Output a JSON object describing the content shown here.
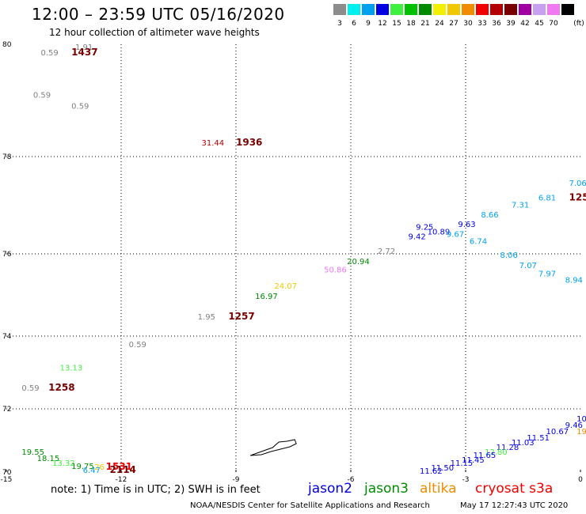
{
  "header": {
    "title": "12:00 – 23:59 UTC 05/16/2020",
    "subtitle": "12 hour collection of altimeter wave heights"
  },
  "legend": {
    "unit": "(ft)",
    "bins": [
      {
        "label": "3",
        "color": "#8c8c8c"
      },
      {
        "label": "6",
        "color": "#00f0f0"
      },
      {
        "label": "9",
        "color": "#00a0f0"
      },
      {
        "label": "12",
        "color": "#0000e0"
      },
      {
        "label": "15",
        "color": "#40f040"
      },
      {
        "label": "18",
        "color": "#00c000"
      },
      {
        "label": "21",
        "color": "#008a00"
      },
      {
        "label": "24",
        "color": "#f0f000"
      },
      {
        "label": "27",
        "color": "#f0c800"
      },
      {
        "label": "30",
        "color": "#f08c00"
      },
      {
        "label": "33",
        "color": "#f00000"
      },
      {
        "label": "36",
        "color": "#b40000"
      },
      {
        "label": "39",
        "color": "#780000"
      },
      {
        "label": "42",
        "color": "#a000a0"
      },
      {
        "label": "45",
        "color": "#c8a0f0"
      },
      {
        "label": "70",
        "color": "#f078f0"
      },
      {
        "label": "",
        "color": "#000000"
      }
    ]
  },
  "map": {
    "lon_range": [
      -15,
      0
    ],
    "lat_range": [
      70,
      80
    ],
    "x_ticks": [
      {
        "lon": -15,
        "label": "-15"
      },
      {
        "lon": -12,
        "label": "-12"
      },
      {
        "lon": -9,
        "label": "-9"
      },
      {
        "lon": -6,
        "label": "-6"
      },
      {
        "lon": -3,
        "label": "-3"
      },
      {
        "lon": 0,
        "label": "0"
      }
    ],
    "y_ticks": [
      {
        "lat": 80,
        "label": "80"
      },
      {
        "lat": 78,
        "label": "78"
      },
      {
        "lat": 76,
        "label": "76"
      },
      {
        "lat": 74,
        "label": "74"
      },
      {
        "lat": 72,
        "label": "72"
      },
      {
        "lat": 70,
        "label": "70"
      }
    ],
    "gridline_lons": [
      -12,
      -9,
      -6,
      -3
    ],
    "gridline_lats": [
      78,
      76,
      74,
      72
    ],
    "island_name": "jan-mayen-outline",
    "labels": [
      {
        "text": "0.59",
        "lon": -14.1,
        "lat": 79.8,
        "color": "#808080",
        "kind": "swh"
      },
      {
        "text": "1.91",
        "lon": -13.2,
        "lat": 79.9,
        "color": "#808080",
        "kind": "swh"
      },
      {
        "text": "1437",
        "lon": -13.3,
        "lat": 79.8,
        "color": "#780000",
        "kind": "time"
      },
      {
        "text": "0.59",
        "lon": -14.3,
        "lat": 79.05,
        "color": "#808080",
        "kind": "swh"
      },
      {
        "text": "0.59",
        "lon": -13.3,
        "lat": 78.85,
        "color": "#808080",
        "kind": "swh"
      },
      {
        "text": "31.44",
        "lon": -9.9,
        "lat": 78.2,
        "color": "#b40000",
        "kind": "swh"
      },
      {
        "text": "1936",
        "lon": -9.0,
        "lat": 78.2,
        "color": "#780000",
        "kind": "time"
      },
      {
        "text": "7.06",
        "lon": -0.3,
        "lat": 77.4,
        "color": "#00a0f0",
        "kind": "swh"
      },
      {
        "text": "6.81",
        "lon": -1.1,
        "lat": 77.1,
        "color": "#00a0f0",
        "kind": "swh"
      },
      {
        "text": "125",
        "lon": -0.3,
        "lat": 77.1,
        "color": "#780000",
        "kind": "time"
      },
      {
        "text": "7.31",
        "lon": -1.8,
        "lat": 76.95,
        "color": "#00a0f0",
        "kind": "swh"
      },
      {
        "text": "8.66",
        "lon": -2.6,
        "lat": 76.75,
        "color": "#00a0f0",
        "kind": "swh"
      },
      {
        "text": "9.25",
        "lon": -4.3,
        "lat": 76.5,
        "color": "#0000e0",
        "kind": "swh"
      },
      {
        "text": "9.63",
        "lon": -3.2,
        "lat": 76.55,
        "color": "#0000e0",
        "kind": "swh"
      },
      {
        "text": "10.89",
        "lon": -4.0,
        "lat": 76.4,
        "color": "#0000e0",
        "kind": "swh"
      },
      {
        "text": "9.67",
        "lon": -3.5,
        "lat": 76.35,
        "color": "#00a0f0",
        "kind": "swh"
      },
      {
        "text": "9.42",
        "lon": -4.5,
        "lat": 76.3,
        "color": "#0000e0",
        "kind": "swh"
      },
      {
        "text": "6.74",
        "lon": -2.9,
        "lat": 76.2,
        "color": "#00a0f0",
        "kind": "swh"
      },
      {
        "text": "2.72",
        "lon": -5.3,
        "lat": 76.0,
        "color": "#808080",
        "kind": "swh"
      },
      {
        "text": "8.06",
        "lon": -2.1,
        "lat": 75.9,
        "color": "#00a0f0",
        "kind": "swh"
      },
      {
        "text": "20.94",
        "lon": -6.1,
        "lat": 75.75,
        "color": "#008a00",
        "kind": "swh"
      },
      {
        "text": "7.07",
        "lon": -1.6,
        "lat": 75.65,
        "color": "#00a0f0",
        "kind": "swh"
      },
      {
        "text": "50.86",
        "lon": -6.7,
        "lat": 75.55,
        "color": "#f078f0",
        "kind": "swh"
      },
      {
        "text": "7.97",
        "lon": -1.1,
        "lat": 75.45,
        "color": "#00a0f0",
        "kind": "swh"
      },
      {
        "text": "8.94",
        "lon": -0.4,
        "lat": 75.3,
        "color": "#00a0f0",
        "kind": "swh"
      },
      {
        "text": "24.07",
        "lon": -8.0,
        "lat": 75.15,
        "color": "#f0c800",
        "kind": "swh"
      },
      {
        "text": "16.97",
        "lon": -8.5,
        "lat": 74.9,
        "color": "#008a00",
        "kind": "swh"
      },
      {
        "text": "1.95",
        "lon": -10.0,
        "lat": 74.4,
        "color": "#808080",
        "kind": "swh"
      },
      {
        "text": "1257",
        "lon": -9.2,
        "lat": 74.4,
        "color": "#780000",
        "kind": "time"
      },
      {
        "text": "0.59",
        "lon": -11.8,
        "lat": 73.7,
        "color": "#808080",
        "kind": "swh"
      },
      {
        "text": "13.13",
        "lon": -13.6,
        "lat": 73.05,
        "color": "#40f040",
        "kind": "swh"
      },
      {
        "text": "0.59",
        "lon": -14.6,
        "lat": 72.5,
        "color": "#808080",
        "kind": "swh"
      },
      {
        "text": "1258",
        "lon": -13.9,
        "lat": 72.5,
        "color": "#780000",
        "kind": "time"
      },
      {
        "text": "10",
        "lon": -0.1,
        "lat": 71.6,
        "color": "#0000e0",
        "kind": "swh"
      },
      {
        "text": "9.46",
        "lon": -0.4,
        "lat": 71.4,
        "color": "#0000e0",
        "kind": "swh"
      },
      {
        "text": "10.67",
        "lon": -0.9,
        "lat": 71.2,
        "color": "#0000e0",
        "kind": "swh"
      },
      {
        "text": "19",
        "lon": -0.1,
        "lat": 71.2,
        "color": "#f08c00",
        "kind": "swh"
      },
      {
        "text": "11.51",
        "lon": -1.4,
        "lat": 71.0,
        "color": "#0000e0",
        "kind": "swh"
      },
      {
        "text": "11.03",
        "lon": -1.8,
        "lat": 70.85,
        "color": "#0000e0",
        "kind": "swh"
      },
      {
        "text": "11.28",
        "lon": -2.2,
        "lat": 70.7,
        "color": "#0000e0",
        "kind": "swh"
      },
      {
        "text": "12.80",
        "lon": -2.5,
        "lat": 70.55,
        "color": "#40f040",
        "kind": "swh"
      },
      {
        "text": "11.65",
        "lon": -2.8,
        "lat": 70.45,
        "color": "#0000e0",
        "kind": "swh"
      },
      {
        "text": "11.45",
        "lon": -3.1,
        "lat": 70.3,
        "color": "#0000e0",
        "kind": "swh"
      },
      {
        "text": "11.15",
        "lon": -3.4,
        "lat": 70.2,
        "color": "#0000e0",
        "kind": "swh"
      },
      {
        "text": "11.50",
        "lon": -3.9,
        "lat": 70.05,
        "color": "#0000e0",
        "kind": "swh"
      },
      {
        "text": "11.62",
        "lon": -4.2,
        "lat": 69.95,
        "color": "#0000e0",
        "kind": "swh"
      },
      {
        "text": "19.55",
        "lon": -14.6,
        "lat": 70.55,
        "color": "#008a00",
        "kind": "swh"
      },
      {
        "text": "18.15",
        "lon": -14.2,
        "lat": 70.35,
        "color": "#008a00",
        "kind": "swh"
      },
      {
        "text": "13.32",
        "lon": -13.8,
        "lat": 70.2,
        "color": "#40f040",
        "kind": "swh"
      },
      {
        "text": "19.75",
        "lon": -13.3,
        "lat": 70.1,
        "color": "#008a00",
        "kind": "swh"
      },
      {
        "text": "26",
        "lon": -12.7,
        "lat": 70.08,
        "color": "#f0c800",
        "kind": "swh"
      },
      {
        "text": "6.47",
        "lon": -13.0,
        "lat": 69.97,
        "color": "#00a0f0",
        "kind": "swh"
      },
      {
        "text": "1531",
        "lon": -12.4,
        "lat": 70.08,
        "color": "#f00000",
        "kind": "time"
      },
      {
        "text": "2114",
        "lon": -12.3,
        "lat": 69.97,
        "color": "#780000",
        "kind": "time"
      }
    ]
  },
  "note": "note: 1) Time is in UTC; 2) SWH is in feet",
  "satellites": [
    {
      "name": "jason2",
      "color": "#0000e0"
    },
    {
      "name": "jason3",
      "color": "#008a00"
    },
    {
      "name": "altika",
      "color": "#f08c00"
    },
    {
      "name": "cryosat s3a",
      "color": "#f00000"
    }
  ],
  "footer": {
    "credit": "NOAA/NESDIS Center for Satellite Applications and Research",
    "timestamp": "May 17 12:27:43 UTC 2020"
  }
}
